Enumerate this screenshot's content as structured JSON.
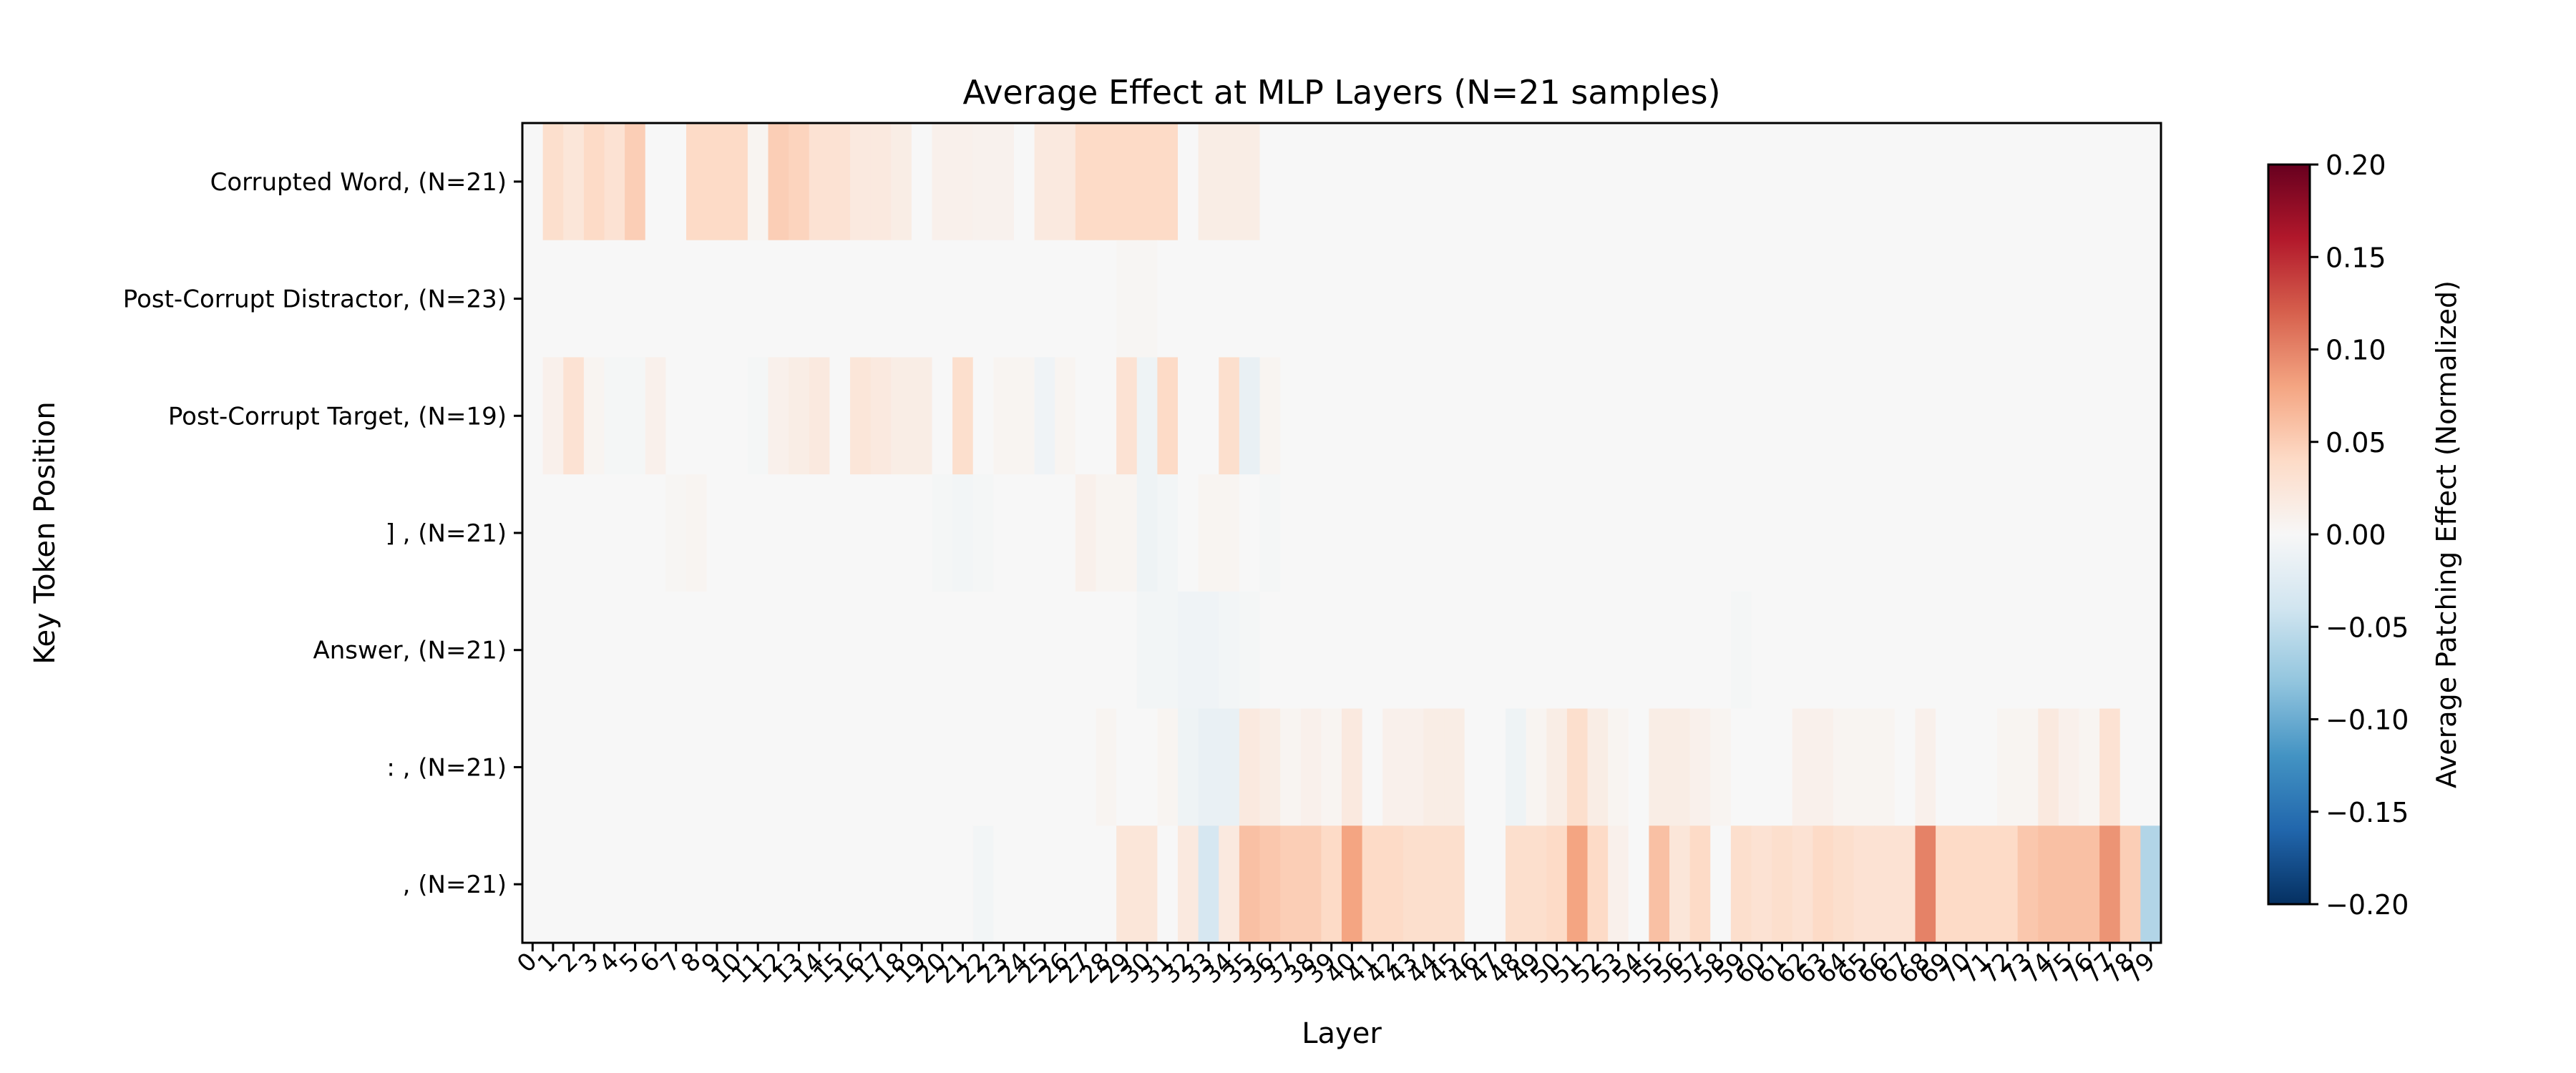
{
  "chart_data": {
    "type": "heatmap",
    "title": "Average Effect at MLP Layers (N=21 samples)",
    "xlabel": "Layer",
    "ylabel": "Key Token Position",
    "colorbar": {
      "label": "Average Patching Effect (Normalized)",
      "colormap": "RdBu_r",
      "vmin": -0.2,
      "vmax": 0.2,
      "ticks": [
        0.2,
        0.15,
        0.1,
        0.05,
        0.0,
        -0.05,
        -0.1,
        -0.15,
        -0.2
      ],
      "tick_labels": [
        "0.20",
        "0.15",
        "0.10",
        "0.05",
        "0.00",
        "−0.05",
        "−0.10",
        "−0.15",
        "−0.20"
      ]
    },
    "rows": [
      "Corrupted Word, (N=21)",
      "Post-Corrupt Distractor, (N=23)",
      "Post-Corrupt Target, (N=19)",
      "] , (N=21)",
      "Answer, (N=21)",
      ": , (N=21)",
      ", (N=21)"
    ],
    "x": [
      "0",
      "1",
      "2",
      "3",
      "4",
      "5",
      "6",
      "7",
      "8",
      "9",
      "10",
      "11",
      "12",
      "13",
      "14",
      "15",
      "16",
      "17",
      "18",
      "19",
      "20",
      "21",
      "22",
      "23",
      "24",
      "25",
      "26",
      "27",
      "28",
      "29",
      "30",
      "31",
      "32",
      "33",
      "34",
      "35",
      "36",
      "37",
      "38",
      "39",
      "40",
      "41",
      "42",
      "43",
      "44",
      "45",
      "46",
      "47",
      "48",
      "49",
      "50",
      "51",
      "52",
      "53",
      "54",
      "55",
      "56",
      "57",
      "58",
      "59",
      "60",
      "61",
      "62",
      "63",
      "64",
      "65",
      "66",
      "67",
      "68",
      "69",
      "70",
      "71",
      "72",
      "73",
      "74",
      "75",
      "76",
      "77",
      "78",
      "79"
    ],
    "values": [
      [
        0.0,
        0.035,
        0.025,
        0.04,
        0.03,
        0.05,
        0.0,
        0.0,
        0.04,
        0.04,
        0.04,
        0.005,
        0.05,
        0.045,
        0.03,
        0.03,
        0.02,
        0.02,
        0.015,
        0.0,
        0.01,
        0.01,
        0.008,
        0.008,
        0.0,
        0.02,
        0.02,
        0.04,
        0.04,
        0.04,
        0.04,
        0.04,
        0.0,
        0.015,
        0.015,
        0.015,
        0.0,
        0.0,
        0.0,
        0.0,
        0.0,
        0.0,
        0.0,
        0.0,
        0.0,
        0.0,
        0.0,
        0.0,
        0.0,
        0.0,
        0.0,
        0.0,
        0.0,
        0.0,
        0.0,
        0.0,
        0.0,
        0.0,
        0.0,
        0.0,
        0.0,
        0.0,
        0.0,
        0.0,
        0.0,
        0.0,
        0.0,
        0.0,
        0.0,
        0.0,
        0.0,
        0.0,
        0.0,
        0.0,
        0.0,
        0.0,
        0.0,
        0.0,
        0.0,
        0.0
      ],
      [
        0.0,
        0.0,
        0.0,
        0.0,
        0.0,
        0.0,
        0.0,
        0.0,
        0.0,
        0.0,
        0.0,
        0.0,
        0.0,
        0.0,
        0.0,
        0.0,
        0.0,
        0.0,
        0.0,
        0.0,
        0.0,
        0.0,
        0.0,
        0.0,
        0.0,
        0.0,
        0.0,
        0.0,
        0.0,
        0.003,
        0.003,
        0.0,
        0.0,
        0.0,
        0.0,
        0.0,
        0.0,
        0.0,
        0.0,
        0.0,
        0.0,
        0.0,
        0.0,
        0.0,
        0.0,
        0.0,
        0.0,
        0.0,
        0.0,
        0.0,
        0.0,
        0.0,
        0.0,
        0.0,
        0.0,
        0.0,
        0.0,
        0.0,
        0.0,
        0.0,
        0.0,
        0.0,
        0.0,
        0.0,
        0.0,
        0.0,
        0.0,
        0.0,
        0.0,
        0.0,
        0.0,
        0.0,
        0.0,
        0.0,
        0.0,
        0.0,
        0.0,
        0.0,
        0.0,
        0.0
      ],
      [
        0.0,
        0.01,
        0.03,
        0.005,
        -0.003,
        -0.003,
        0.01,
        0.0,
        0.0,
        0.0,
        0.0,
        -0.003,
        0.01,
        0.015,
        0.02,
        0.0,
        0.025,
        0.02,
        0.015,
        0.015,
        0.0,
        0.035,
        0.0,
        0.005,
        0.005,
        -0.008,
        0.005,
        0.0,
        0.0,
        0.03,
        -0.01,
        0.04,
        0.0,
        0.0,
        0.035,
        -0.015,
        0.005,
        0.0,
        0.0,
        0.0,
        0.0,
        0.0,
        0.0,
        0.0,
        0.0,
        0.0,
        0.0,
        0.0,
        0.0,
        0.0,
        0.0,
        0.0,
        0.0,
        0.0,
        0.0,
        0.0,
        0.0,
        0.0,
        0.0,
        0.0,
        0.0,
        0.0,
        0.0,
        0.0,
        0.0,
        0.0,
        0.0,
        0.0,
        0.0,
        0.0,
        0.0,
        0.0,
        0.0,
        0.0,
        0.0,
        0.0,
        0.0,
        0.0,
        0.0,
        0.0
      ],
      [
        0.0,
        0.0,
        0.0,
        0.0,
        0.0,
        0.0,
        0.0,
        0.003,
        0.005,
        0.0,
        0.0,
        0.0,
        0.0,
        0.0,
        0.0,
        0.0,
        0.0,
        0.0,
        0.0,
        0.0,
        -0.003,
        -0.005,
        -0.003,
        0.0,
        0.0,
        0.0,
        0.0,
        0.01,
        0.005,
        0.005,
        -0.01,
        -0.005,
        0.0,
        0.005,
        0.005,
        0.0,
        -0.003,
        0.0,
        0.0,
        0.0,
        0.0,
        0.0,
        0.0,
        0.0,
        0.0,
        0.0,
        0.0,
        0.0,
        0.0,
        0.0,
        0.0,
        0.0,
        0.0,
        0.0,
        0.0,
        0.0,
        0.0,
        0.0,
        0.0,
        0.0,
        0.0,
        0.0,
        0.0,
        0.0,
        0.0,
        0.0,
        0.0,
        0.0,
        0.0,
        0.0,
        0.0,
        0.0,
        0.0,
        0.0,
        0.0,
        0.0,
        0.0,
        0.0,
        0.0,
        0.0
      ],
      [
        0.0,
        0.0,
        0.0,
        0.0,
        0.0,
        0.0,
        0.0,
        0.0,
        0.0,
        0.0,
        0.0,
        0.0,
        0.0,
        0.0,
        0.0,
        0.0,
        0.0,
        0.0,
        0.0,
        0.0,
        0.0,
        0.0,
        0.0,
        0.0,
        0.0,
        0.0,
        0.0,
        0.0,
        0.0,
        0.0,
        -0.005,
        -0.005,
        -0.008,
        -0.008,
        -0.005,
        -0.003,
        0.0,
        0.0,
        0.0,
        0.0,
        0.0,
        0.0,
        0.0,
        0.0,
        0.0,
        0.0,
        0.0,
        0.0,
        0.0,
        0.0,
        0.0,
        0.0,
        0.0,
        0.0,
        0.0,
        0.0,
        0.0,
        0.0,
        0.0,
        -0.003,
        0.0,
        0.0,
        0.0,
        0.0,
        0.0,
        0.0,
        0.0,
        0.0,
        0.0,
        0.0,
        0.0,
        0.0,
        0.0,
        0.0,
        0.0,
        0.0,
        0.0,
        0.0,
        0.0,
        0.0
      ],
      [
        0.0,
        0.0,
        0.0,
        0.0,
        0.0,
        0.0,
        0.0,
        0.0,
        0.0,
        0.0,
        0.0,
        0.0,
        0.0,
        0.0,
        0.0,
        0.0,
        0.0,
        0.0,
        0.0,
        0.0,
        0.0,
        0.0,
        0.0,
        0.0,
        0.0,
        0.0,
        0.0,
        0.0,
        0.005,
        0.0,
        0.0,
        0.005,
        -0.01,
        -0.015,
        -0.015,
        0.02,
        0.015,
        0.005,
        0.01,
        0.005,
        0.02,
        0.0,
        0.01,
        0.01,
        0.015,
        0.015,
        0.0,
        0.0,
        -0.01,
        0.005,
        0.015,
        0.035,
        0.015,
        0.005,
        0.0,
        0.015,
        0.015,
        0.01,
        0.005,
        0.0,
        0.0,
        0.0,
        0.01,
        0.01,
        0.005,
        0.005,
        0.005,
        0.0,
        0.01,
        0.0,
        0.0,
        0.0,
        0.005,
        0.005,
        0.02,
        0.01,
        0.005,
        0.03,
        0.0,
        0.0
      ],
      [
        0.0,
        0.0,
        0.0,
        0.0,
        0.0,
        0.0,
        0.0,
        0.0,
        0.0,
        0.0,
        0.0,
        0.0,
        0.0,
        0.0,
        0.0,
        0.0,
        0.0,
        0.0,
        0.0,
        0.0,
        0.0,
        0.0,
        -0.005,
        0.0,
        0.0,
        0.0,
        0.0,
        0.0,
        0.0,
        0.025,
        0.025,
        0.0,
        0.02,
        -0.035,
        0.02,
        0.06,
        0.055,
        0.05,
        0.05,
        0.04,
        0.08,
        0.04,
        0.04,
        0.035,
        0.035,
        0.035,
        0.0,
        0.0,
        0.035,
        0.035,
        0.04,
        0.08,
        0.04,
        0.01,
        0.0,
        0.06,
        0.025,
        0.04,
        0.0,
        0.035,
        0.03,
        0.035,
        0.03,
        0.04,
        0.035,
        0.03,
        0.03,
        0.03,
        0.1,
        0.04,
        0.04,
        0.04,
        0.04,
        0.055,
        0.06,
        0.06,
        0.06,
        0.09,
        0.05,
        -0.06
      ]
    ]
  }
}
